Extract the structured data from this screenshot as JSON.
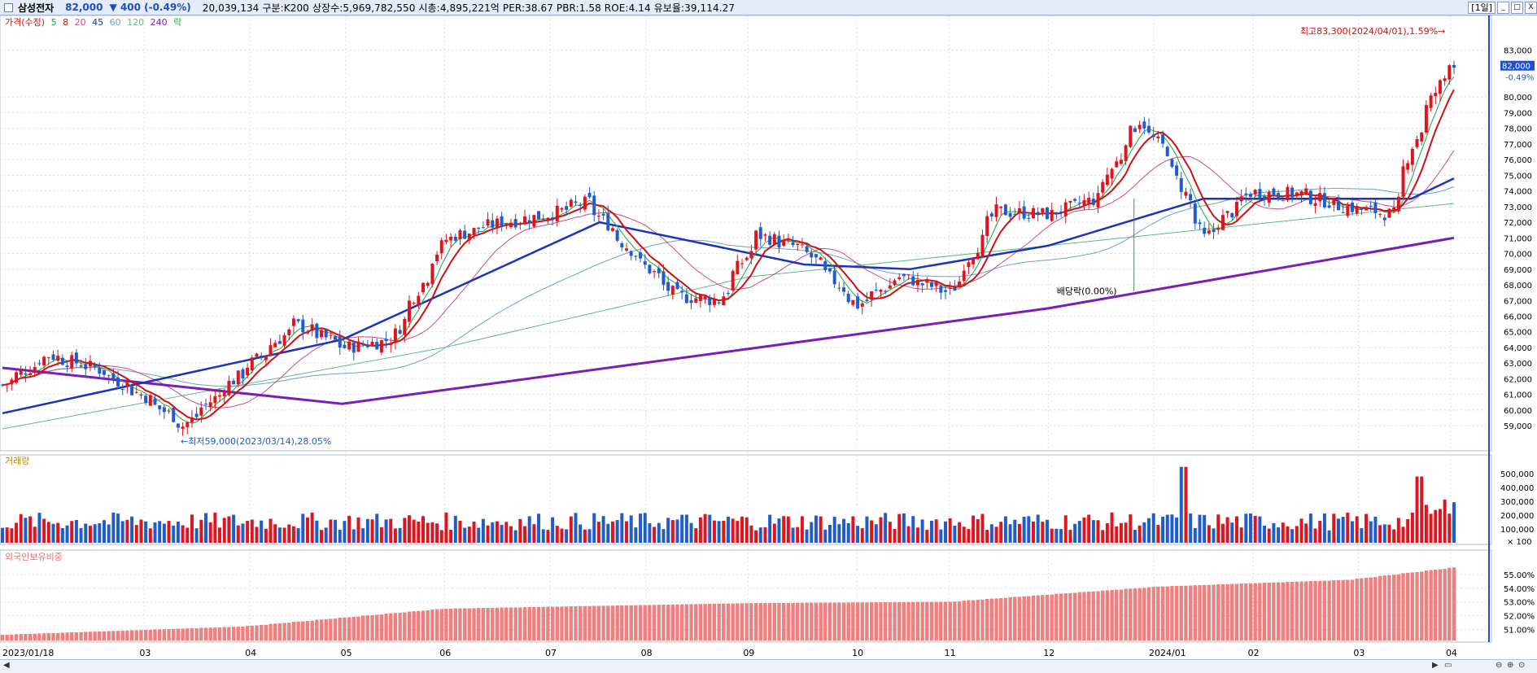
{
  "header": {
    "name": "삼성전자",
    "price": "82,000",
    "change": "▼ 400 (-0.49%)",
    "info": "20,039,134  구분:K200 상장수:5,969,782,550 시총:4,895,221억 PER:38.67 PBR:1.58 ROE:4.14 유보율:39,114.27",
    "period": "[1일]",
    "btn_min": "_",
    "btn_max": "□",
    "btn_close": "X"
  },
  "legend": {
    "price_label": "가격(수정)",
    "ma5": "5",
    "ma8": "8",
    "ma20": "20",
    "ma45": "45",
    "ma60": "60",
    "ma120": "120",
    "ma240": "240",
    "rak": "락"
  },
  "colors": {
    "up": "#e0141e",
    "down": "#1f5ccc",
    "ma5": "#22a34a",
    "ma8": "#cc1111",
    "ma20": "#cc4b8c",
    "ma45": "#1b34b8",
    "ma60": "#6fa0c8",
    "ma120": "#5fb88c",
    "ma240": "#7a1fb3",
    "foreign": "#f08080",
    "grid": "#d9dee8"
  },
  "annotations": {
    "high": "최고83,300(2024/04/01),1.59%→",
    "low": "←최저59,000(2023/03/14),28.05%",
    "dividend": "배당락(0.00%)",
    "last_price": "82,000",
    "last_change": "-0.49%"
  },
  "volume_panel": {
    "title": "거래량",
    "unit": "× 100"
  },
  "foreign_panel": {
    "title": "외국인보유비중"
  },
  "chart_data": {
    "type": "candlestick",
    "title": "",
    "x_range": [
      "2023/01/18",
      "2024/04/02"
    ],
    "month_labels": [
      "2023/01/18",
      "03",
      "04",
      "05",
      "06",
      "07",
      "08",
      "09",
      "10",
      "11",
      "12",
      "2024/01",
      "02",
      "03",
      "04"
    ],
    "price_axis": {
      "ticks": [
        59000,
        60000,
        61000,
        62000,
        63000,
        64000,
        65000,
        66000,
        67000,
        68000,
        69000,
        70000,
        71000,
        72000,
        73000,
        74000,
        75000,
        76000,
        77000,
        78000,
        79000,
        80000,
        83000
      ],
      "tick_labels": [
        "59,000",
        "60,000",
        "61,000",
        "62,000",
        "63,000",
        "64,000",
        "65,000",
        "66,000",
        "67,000",
        "68,000",
        "69,000",
        "70,000",
        "71,000",
        "72,000",
        "73,000",
        "74,000",
        "75,000",
        "76,000",
        "77,000",
        "78,000",
        "79,000",
        "80,000",
        "83,000"
      ],
      "ylim": [
        57500,
        85000
      ]
    },
    "close_anchors": [
      [
        "2023/01/18",
        61600
      ],
      [
        "2023/02/01",
        63500
      ],
      [
        "2023/02/15",
        62700
      ],
      [
        "2023/03/01",
        61000
      ],
      [
        "2023/03/14",
        59000
      ],
      [
        "2023/04/01",
        62500
      ],
      [
        "2023/04/17",
        65500
      ],
      [
        "2023/05/02",
        64000
      ],
      [
        "2023/05/16",
        64500
      ],
      [
        "2023/06/01",
        70900
      ],
      [
        "2023/06/16",
        71900
      ],
      [
        "2023/07/03",
        72500
      ],
      [
        "2023/07/14",
        73300
      ],
      [
        "2023/07/28",
        70000
      ],
      [
        "2023/08/10",
        67300
      ],
      [
        "2023/08/23",
        67000
      ],
      [
        "2023/09/04",
        71200
      ],
      [
        "2023/09/18",
        70200
      ],
      [
        "2023/10/04",
        66700
      ],
      [
        "2023/10/17",
        68500
      ],
      [
        "2023/11/01",
        67500
      ],
      [
        "2023/11/15",
        72700
      ],
      [
        "2023/12/01",
        72500
      ],
      [
        "2023/12/15",
        73500
      ],
      [
        "2023/12/28",
        78500
      ],
      [
        "2024/01/05",
        76600
      ],
      [
        "2024/01/17",
        71000
      ],
      [
        "2024/01/31",
        73900
      ],
      [
        "2024/02/15",
        73800
      ],
      [
        "2024/02/28",
        73000
      ],
      [
        "2024/03/14",
        72500
      ],
      [
        "2024/03/20",
        76900
      ],
      [
        "2024/03/28",
        80800
      ],
      [
        "2024/04/01",
        82400
      ],
      [
        "2024/04/02",
        82000
      ]
    ],
    "moving_averages": {
      "ma240": [
        [
          "2023/01/18",
          62700
        ],
        [
          "2023/05/01",
          60400
        ],
        [
          "2023/12/01",
          66500
        ],
        [
          "2024/04/02",
          71000
        ]
      ],
      "ma45": [
        [
          "2023/01/18",
          59800
        ],
        [
          "2023/05/01",
          64500
        ],
        [
          "2023/07/18",
          72000
        ],
        [
          "2023/09/18",
          69300
        ],
        [
          "2023/10/20",
          69000
        ],
        [
          "2023/12/01",
          70500
        ],
        [
          "2024/01/17",
          73500
        ],
        [
          "2024/03/20",
          73500
        ],
        [
          "2024/04/02",
          74800
        ]
      ],
      "ma120": [
        [
          "2023/01/18",
          58800
        ],
        [
          "2023/06/01",
          64000
        ],
        [
          "2023/09/01",
          68500
        ],
        [
          "2023/12/01",
          70500
        ],
        [
          "2024/04/02",
          73200
        ]
      ]
    },
    "volume_axis": {
      "ticks": [
        100000,
        200000,
        300000,
        400000,
        500000
      ],
      "tick_labels": [
        "100,000",
        "200,000",
        "300,000",
        "400,000",
        "500,000"
      ]
    },
    "foreign_axis": {
      "ticks": [
        51,
        52,
        53,
        54,
        55
      ],
      "tick_labels": [
        "51.00%",
        "52.00%",
        "53.00%",
        "54.00%",
        "55.00%"
      ],
      "ylim": [
        50.2,
        56.0
      ]
    },
    "foreign_ratio_anchors": [
      [
        "2023/01/18",
        50.6
      ],
      [
        "2023/04/01",
        51.2
      ],
      [
        "2023/06/01",
        52.5
      ],
      [
        "2023/09/01",
        52.9
      ],
      [
        "2023/11/01",
        53.0
      ],
      [
        "2024/01/03",
        54.1
      ],
      [
        "2024/03/01",
        54.6
      ],
      [
        "2024/04/02",
        55.5
      ]
    ]
  }
}
